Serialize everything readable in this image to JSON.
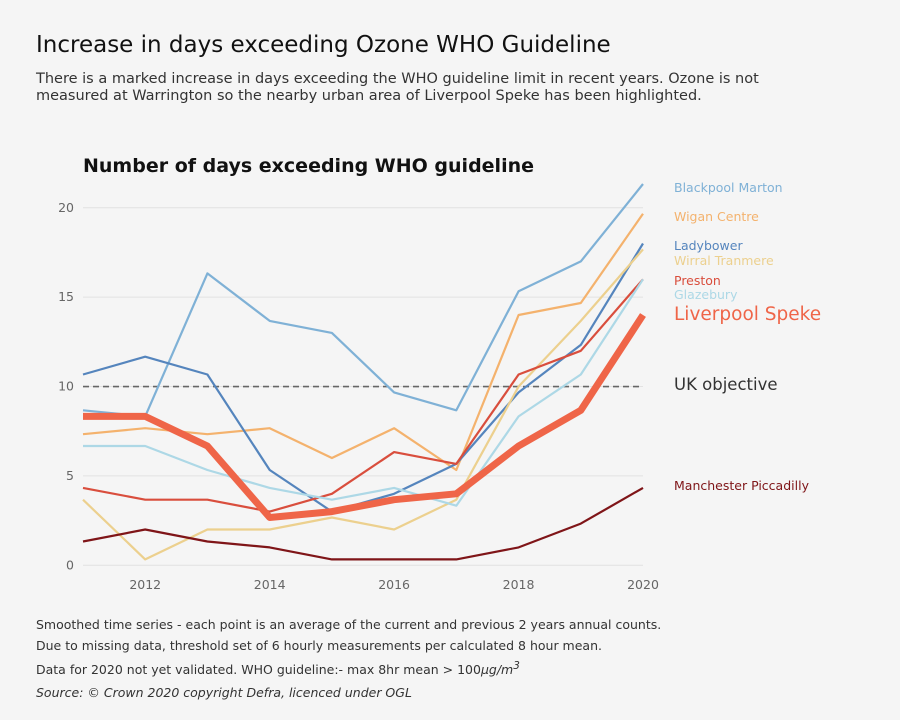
{
  "title": "Increase in days exceeding Ozone WHO Guideline",
  "subtitle": "There is a marked increase in days exceeding the WHO guideline limit in recent years. Ozone is not measured at Warrington so the nearby urban area of Liverpool Speke has been highlighted.",
  "chart_data": {
    "type": "line",
    "title": "Number of days exceeding WHO guideline",
    "xlabel": "",
    "ylabel": "",
    "x": [
      2011,
      2012,
      2013,
      2014,
      2015,
      2016,
      2017,
      2018,
      2019,
      2020
    ],
    "xticks": [
      "2012",
      "2014",
      "2016",
      "2018",
      "2020"
    ],
    "yticks": [
      "0",
      "5",
      "10",
      "15",
      "20"
    ],
    "xlim": [
      2011,
      2020
    ],
    "ylim": [
      -0.6,
      22
    ],
    "grid": "horizontal",
    "legend": "direct labels right",
    "reference_line": {
      "label": "UK objective",
      "value": 10,
      "color": "#666666"
    },
    "series": [
      {
        "name": "Blackpool Marton",
        "color": "#7fb1d6",
        "values": [
          8.67,
          8.33,
          16.33,
          13.67,
          13.0,
          9.67,
          8.67,
          15.33,
          17.0,
          21.33
        ]
      },
      {
        "name": "Wigan Centre",
        "color": "#f4b26d",
        "values": [
          7.33,
          7.67,
          7.33,
          7.67,
          6.0,
          7.67,
          5.33,
          14.0,
          14.67,
          19.67
        ]
      },
      {
        "name": "Ladybower",
        "color": "#5585bd",
        "values": [
          10.67,
          11.67,
          10.67,
          5.33,
          3.0,
          4.0,
          5.67,
          9.67,
          12.33,
          18.0
        ]
      },
      {
        "name": "Wirral Tranmere",
        "color": "#ecd08e",
        "values": [
          3.67,
          0.33,
          2.0,
          2.0,
          2.67,
          2.0,
          3.67,
          10.0,
          13.67,
          17.67
        ]
      },
      {
        "name": "Preston",
        "color": "#d94e3d",
        "values": [
          4.33,
          3.67,
          3.67,
          3.0,
          4.0,
          6.33,
          5.67,
          10.67,
          12.0,
          16.0
        ]
      },
      {
        "name": "Glazebury",
        "color": "#add8e6",
        "values": [
          6.67,
          6.67,
          5.33,
          4.33,
          3.67,
          4.33,
          3.33,
          8.33,
          10.67,
          16.0
        ]
      },
      {
        "name": "Manchester Piccadilly",
        "color": "#7f1518",
        "values": [
          1.33,
          2.0,
          1.33,
          1.0,
          0.33,
          0.33,
          0.33,
          1.0,
          2.33,
          4.33
        ]
      },
      {
        "name": "Liverpool Speke",
        "color": "#ef6548",
        "highlight": true,
        "values": [
          8.33,
          8.33,
          6.67,
          2.67,
          3.0,
          3.67,
          4.0,
          6.67,
          8.67,
          14.0
        ]
      }
    ]
  },
  "notes": [
    "Smoothed time series - each point is an average of the current and previous 2 years annual counts.",
    "Due to missing data, threshold set of 6 hourly measurements per calculated 8 hour mean.",
    "Data for 2020 not yet validated. WHO guideline:- max 8hr mean > 100"
  ],
  "note_unit": "μg/m",
  "note_unit_sup": "3",
  "source": "Source: © Crown 2020 copyright Defra,  licenced under OGL"
}
